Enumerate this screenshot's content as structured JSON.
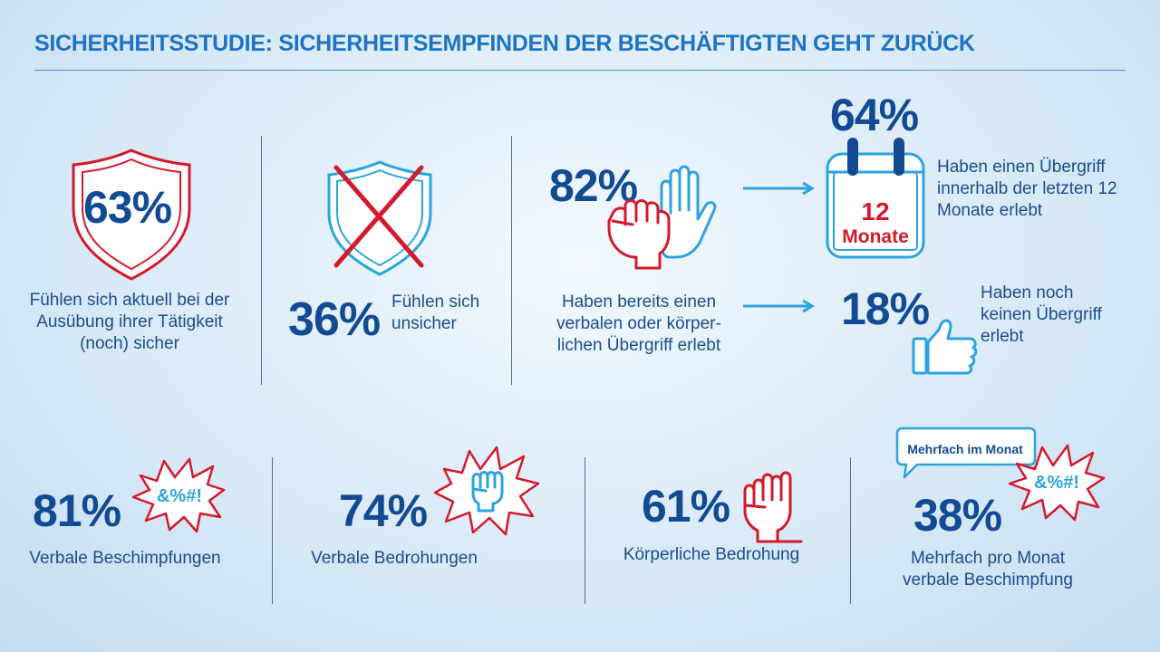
{
  "title": "SICHERHEITSSTUDIE: SICHERHEITSEMPFINDEN DER BESCHÄFTIGTEN GEHT ZURÜCK",
  "colors": {
    "blue": "#124b93",
    "accent_blue": "#1e74c2",
    "light_blue": "#2aa3e0",
    "red": "#d5192c"
  },
  "top": {
    "safe": {
      "value": "63%",
      "text": "Fühlen sich aktuell bei der Ausübung ihrer Tätigkeit (noch) sicher",
      "icon": "shield-icon"
    },
    "unsafe": {
      "value": "36%",
      "text": "Fühlen sich unsicher",
      "icon": "shield-crossed-icon"
    },
    "experienced": {
      "value": "82%",
      "text": "Haben bereits einen verbalen oder körper-lichen Übergriff erlebt",
      "icon": "fist-and-hand-icon"
    },
    "last12": {
      "value": "64%",
      "text": "Haben einen Übergriff innerhalb der letzten 12 Monate erlebt",
      "icon": "calendar-icon",
      "calendar_number": "12",
      "calendar_label": "Monate"
    },
    "none": {
      "value": "18%",
      "text": "Haben noch keinen Übergriff erlebt",
      "icon": "thumbs-up-icon"
    }
  },
  "bottom": [
    {
      "value": "81%",
      "label": "Verbale Beschimpfungen",
      "burst_text": "&%#!",
      "icon": "swearing-burst-icon"
    },
    {
      "value": "74%",
      "label": "Verbale Bedrohungen",
      "icon": "raised-fist-burst-icon"
    },
    {
      "value": "61%",
      "label": "Körperliche Bedrohung",
      "icon": "fist-icon"
    },
    {
      "value": "38%",
      "label": "Mehrfach pro Monat verbale Beschimpfung",
      "bubble_text": "Mehrfach im Monat",
      "burst_text": "&%#!",
      "icon": "speech-bubble-icon"
    }
  ]
}
